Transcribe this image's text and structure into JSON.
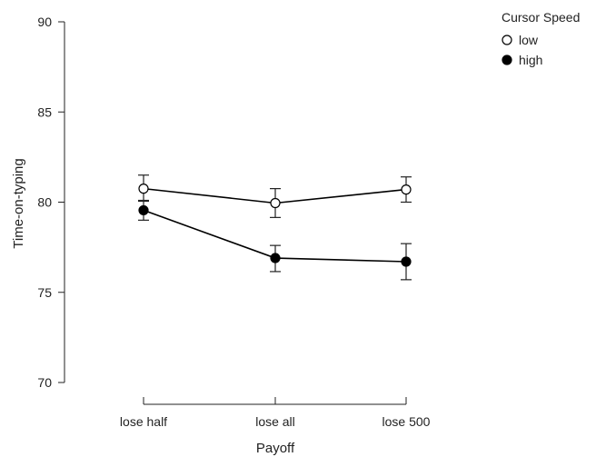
{
  "chart_data": {
    "type": "line",
    "xlabel": "Payoff",
    "ylabel": "Time-on-typing",
    "categories": [
      "lose half",
      "lose all",
      "lose 500"
    ],
    "ylim": [
      70,
      90
    ],
    "yticks": [
      "70",
      "75",
      "80",
      "85",
      "90"
    ],
    "legend": {
      "title": "Cursor Speed",
      "placement": "top-right"
    },
    "series": [
      {
        "name": "low",
        "marker": "open-circle",
        "color": "#000000",
        "values": [
          80.75,
          79.95,
          80.7
        ],
        "error_low": [
          80.05,
          79.15,
          80.0
        ],
        "error_high": [
          81.5,
          80.75,
          81.4
        ]
      },
      {
        "name": "high",
        "marker": "filled-circle",
        "color": "#000000",
        "values": [
          79.55,
          76.9,
          76.7
        ],
        "error_low": [
          79.0,
          76.15,
          75.7
        ],
        "error_high": [
          80.1,
          77.6,
          77.7
        ]
      }
    ]
  }
}
